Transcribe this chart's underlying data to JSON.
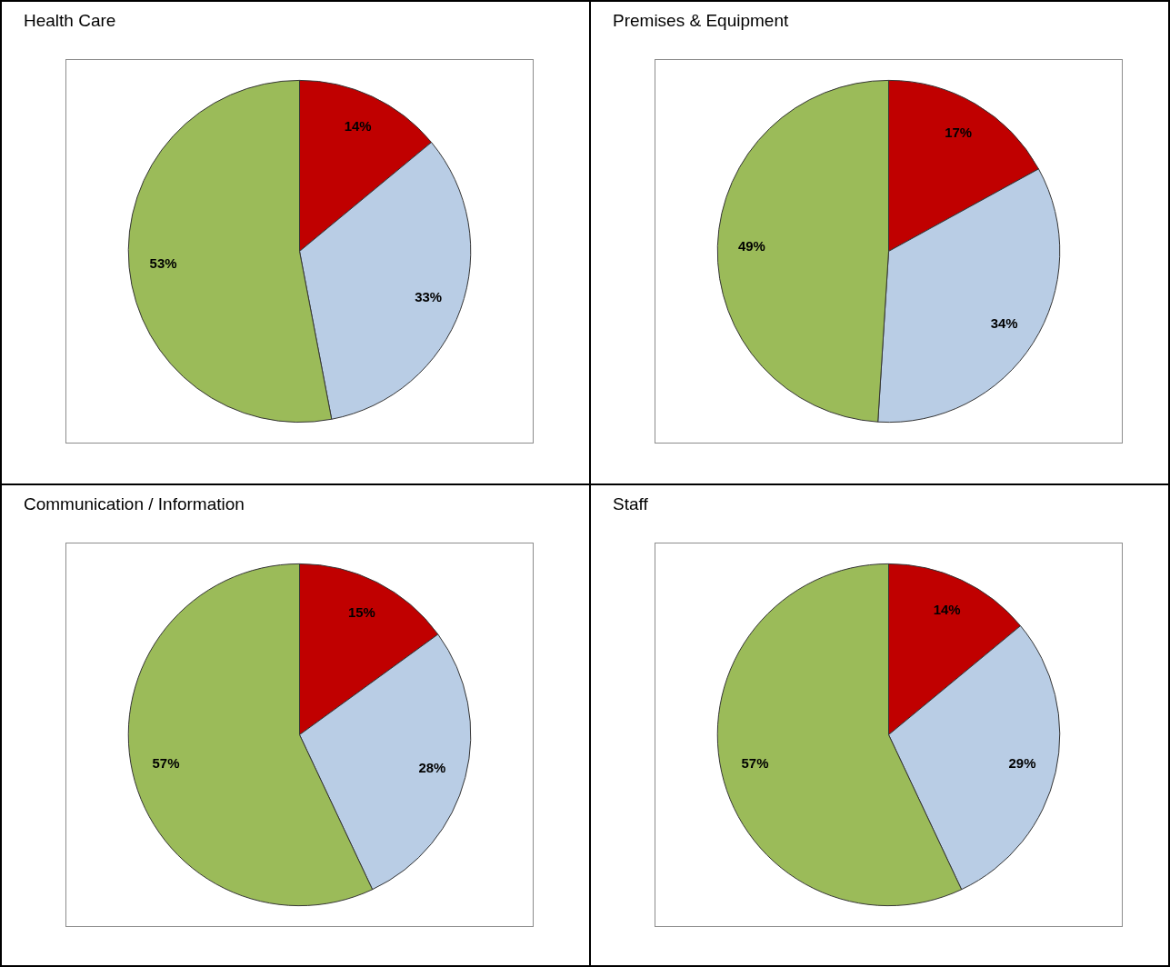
{
  "chart_data": [
    {
      "type": "pie",
      "title": "Health Care",
      "categories": [
        null,
        null,
        null
      ],
      "values": [
        14,
        33,
        53
      ],
      "colors": [
        "#c00000",
        "#b9cde5",
        "#9bbb59"
      ],
      "value_labels": [
        "14%",
        "33%",
        "53%"
      ],
      "legend": false
    },
    {
      "type": "pie",
      "title": "Premises & Equipment",
      "categories": [
        null,
        null,
        null
      ],
      "values": [
        17,
        34,
        49
      ],
      "colors": [
        "#c00000",
        "#b9cde5",
        "#9bbb59"
      ],
      "value_labels": [
        "17%",
        "34%",
        "49%"
      ],
      "legend": false
    },
    {
      "type": "pie",
      "title": "Communication / Information",
      "categories": [
        null,
        null,
        null
      ],
      "values": [
        15,
        28,
        57
      ],
      "colors": [
        "#c00000",
        "#b9cde5",
        "#9bbb59"
      ],
      "value_labels": [
        "15%",
        "28%",
        "57%"
      ],
      "legend": false
    },
    {
      "type": "pie",
      "title": "Staff",
      "categories": [
        null,
        null,
        null
      ],
      "values": [
        14,
        29,
        57
      ],
      "colors": [
        "#c00000",
        "#b9cde5",
        "#9bbb59"
      ],
      "value_labels": [
        "14%",
        "29%",
        "57%"
      ],
      "legend": false
    }
  ]
}
